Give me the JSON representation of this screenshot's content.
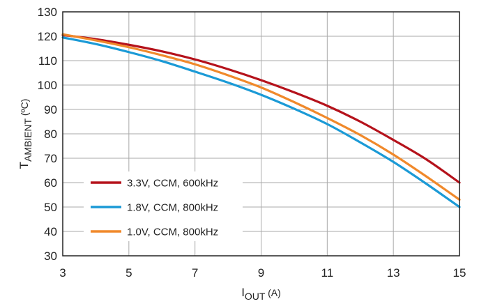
{
  "chart_data": {
    "type": "line",
    "xlabel": {
      "main": "I",
      "sub": "OUT",
      "unit": " (A)"
    },
    "ylabel": {
      "main": "T",
      "sub": "AMBIENT",
      "unit": " (ºC)"
    },
    "xlim": [
      3,
      15
    ],
    "ylim": [
      30,
      130
    ],
    "xticks": [
      3,
      5,
      7,
      9,
      11,
      13,
      15
    ],
    "yticks": [
      30,
      40,
      50,
      60,
      70,
      80,
      90,
      100,
      110,
      120,
      130
    ],
    "grid": true,
    "legend_position": "bottom-left",
    "series": [
      {
        "name": "3.3V, CCM, 600kHz",
        "color": "#b5121b",
        "x": [
          3,
          4,
          5,
          6,
          7,
          8,
          9,
          10,
          11,
          12,
          13,
          14,
          15
        ],
        "y": [
          120.5,
          118.8,
          116.5,
          113.8,
          110.5,
          106.5,
          102,
          97,
          91.5,
          85,
          77.5,
          69.5,
          60
        ]
      },
      {
        "name": "1.8V, CCM, 800kHz",
        "color": "#1b9ad6",
        "x": [
          3,
          4,
          5,
          6,
          7,
          8,
          9,
          10,
          11,
          12,
          13,
          14,
          15
        ],
        "y": [
          119.5,
          116.8,
          113.5,
          109.8,
          105.5,
          101,
          96,
          90.3,
          84,
          76.5,
          68.5,
          59.5,
          50
        ]
      },
      {
        "name": "1.0V, CCM, 800kHz",
        "color": "#f0892b",
        "x": [
          3,
          4,
          5,
          6,
          7,
          8,
          9,
          10,
          11,
          12,
          13,
          14,
          15
        ],
        "y": [
          120.8,
          118.3,
          115.5,
          112.2,
          108.5,
          104,
          99,
          93,
          86.5,
          79.5,
          71.5,
          62.5,
          53
        ]
      }
    ]
  }
}
